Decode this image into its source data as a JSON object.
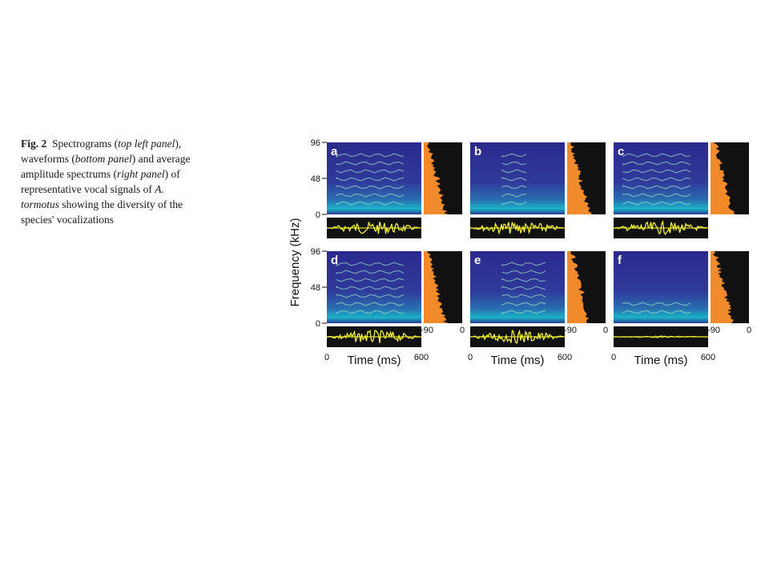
{
  "caption": {
    "fig_label": "Fig. 2",
    "text_1": "Spectrograms (",
    "em_1": "top left panel",
    "text_2": "), waveforms (",
    "em_2": "bottom panel",
    "text_3": ") and average amplitude spectrums (",
    "em_3": "right panel",
    "text_4": ") of representative vocal signals of ",
    "em_4": "A. tormotus",
    "text_5": " showing the diversity of the species' vocalizations"
  },
  "figure": {
    "y_axis_label": "Frequency (kHz)",
    "x_axis_label": "Time (ms)",
    "x_tick_start": "0",
    "x_tick_end": "600",
    "y_ticks": [
      "96",
      "48",
      "0"
    ],
    "amp_ticks": [
      "-90",
      "0"
    ],
    "panels": [
      {
        "label": "a"
      },
      {
        "label": "b"
      },
      {
        "label": "c"
      },
      {
        "label": "d"
      },
      {
        "label": "e"
      },
      {
        "label": "f"
      }
    ],
    "colors": {
      "spectrogram_bg": "#2c2a8a",
      "spectrogram_noise": "#14b7c8",
      "harmonic": "#9fe6c8",
      "waveform": "#ffff3c",
      "spectrum": "#f08a2a",
      "panel_dark": "#111111"
    }
  }
}
